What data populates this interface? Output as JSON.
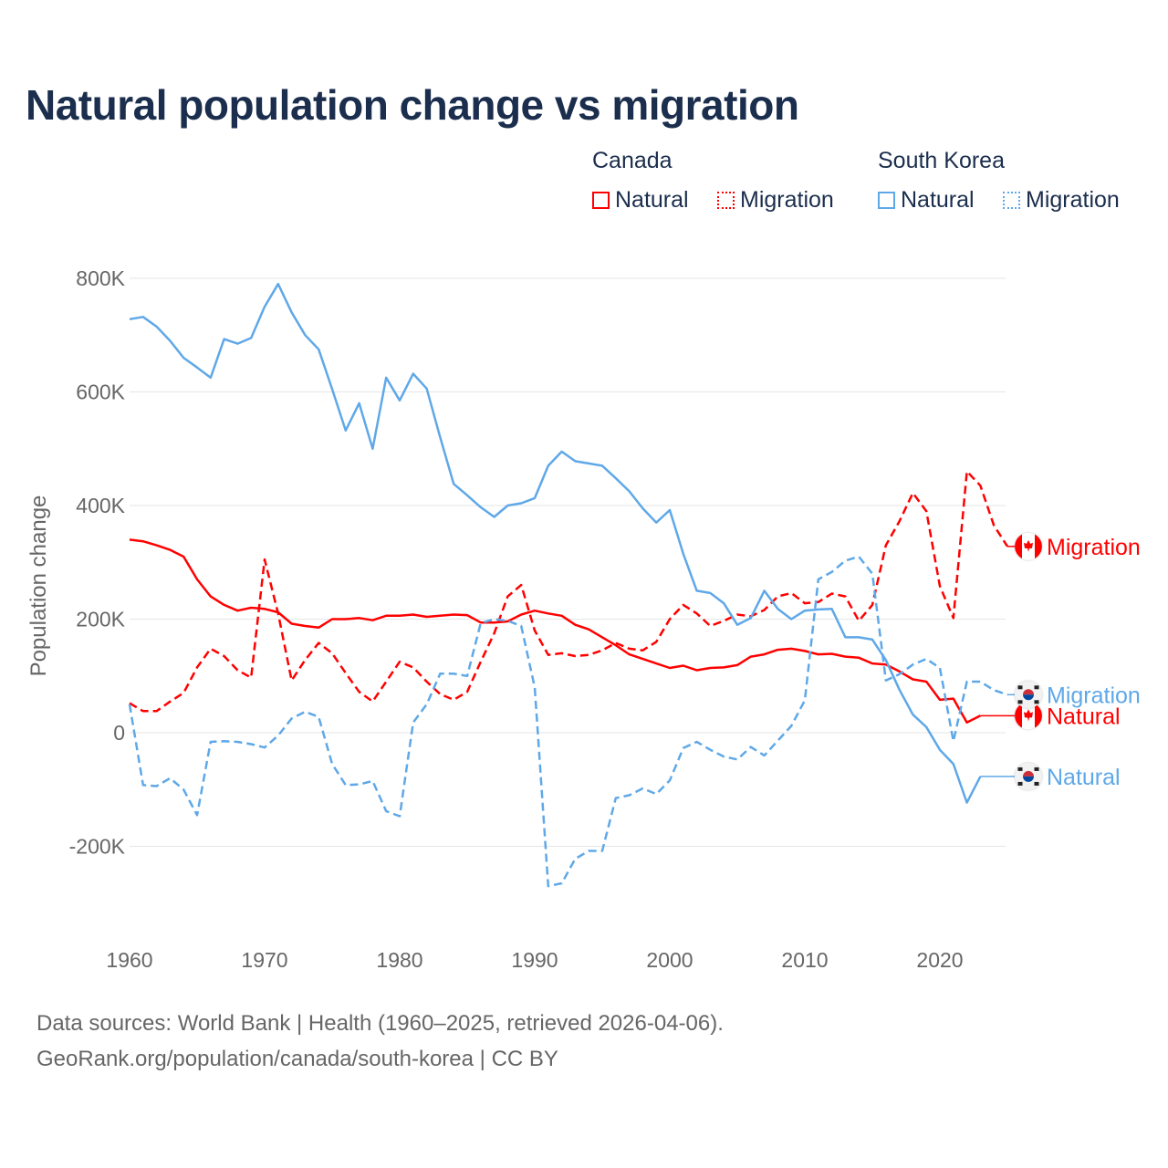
{
  "title": "Natural population change vs migration",
  "legend": {
    "groups": [
      {
        "name": "Canada",
        "items": [
          "Natural",
          "Migration"
        ]
      },
      {
        "name": "South Korea",
        "items": [
          "Natural",
          "Migration"
        ]
      }
    ]
  },
  "footer": {
    "line1": "Data sources: World Bank | Health (1960–2025, retrieved 2026-04-06).",
    "line2": "GeoRank.org/population/canada/south-korea | CC BY"
  },
  "colors": {
    "canada": "#ff0000",
    "korea": "#5fa8e8",
    "grid": "#e6e6e6",
    "tick": "#666666",
    "title": "#1b2e4d"
  },
  "chart_data": {
    "type": "line",
    "title": "Natural population change vs migration",
    "xlabel": "",
    "ylabel": "Population change",
    "xlim": [
      1960,
      2025
    ],
    "ylim": [
      -300000,
      800000
    ],
    "yticks": [
      {
        "v": 800,
        "label": "800K"
      },
      {
        "v": 600,
        "label": "600K"
      },
      {
        "v": 400,
        "label": "400K"
      },
      {
        "v": 200,
        "label": "200K"
      },
      {
        "v": 0,
        "label": "0"
      },
      {
        "v": -200,
        "label": "-200K"
      }
    ],
    "xticks": [
      1960,
      1970,
      1980,
      1990,
      2000,
      2010,
      2020
    ],
    "units": "thousands",
    "grid": true,
    "legend_position": "top-right",
    "series": [
      {
        "name": "Canada Natural",
        "label": "Natural",
        "country": "canada",
        "style": "solid",
        "start": 1960,
        "values": [
          340,
          337,
          330,
          322,
          310,
          270,
          240,
          225,
          215,
          220,
          218,
          212,
          192,
          188,
          185,
          200,
          200,
          202,
          198,
          206,
          206,
          208,
          204,
          206,
          208,
          207,
          194,
          194,
          196,
          208,
          215,
          210,
          206,
          190,
          182,
          168,
          154,
          138,
          130,
          122,
          114,
          118,
          110,
          114,
          115,
          119,
          134,
          138,
          146,
          148,
          144,
          138,
          139,
          134,
          132,
          122,
          120,
          108,
          94,
          90,
          58,
          60,
          18,
          30
        ]
      },
      {
        "name": "Canada Migration",
        "label": "Migration",
        "country": "canada",
        "style": "dashed",
        "start": 1960,
        "values": [
          52,
          38,
          38,
          55,
          70,
          115,
          148,
          135,
          110,
          97,
          305,
          210,
          92,
          128,
          158,
          140,
          105,
          72,
          55,
          90,
          125,
          115,
          90,
          68,
          58,
          72,
          125,
          175,
          240,
          260,
          180,
          137,
          140,
          135,
          137,
          145,
          158,
          148,
          145,
          160,
          200,
          225,
          210,
          188,
          197,
          208,
          205,
          216,
          240,
          246,
          228,
          230,
          245,
          240,
          197,
          225,
          330,
          372,
          422,
          390,
          258,
          202,
          460,
          435,
          365,
          328
        ]
      },
      {
        "name": "South Korea Natural",
        "label": "Natural",
        "country": "korea",
        "style": "solid",
        "start": 1960,
        "values": [
          728,
          732,
          715,
          690,
          660,
          643,
          625,
          693,
          685,
          695,
          750,
          790,
          740,
          700,
          675,
          605,
          532,
          580,
          500,
          625,
          585,
          632,
          606,
          520,
          438,
          418,
          397,
          380,
          400,
          404,
          413,
          470,
          495,
          478,
          474,
          470,
          448,
          425,
          395,
          370,
          392,
          315,
          250,
          246,
          228,
          190,
          202,
          250,
          218,
          200,
          215,
          217,
          218,
          168,
          168,
          164,
          128,
          76,
          32,
          10,
          -30,
          -55,
          -123,
          -77
        ]
      },
      {
        "name": "South Korea Migration",
        "label": "Migration",
        "country": "korea",
        "style": "dashed",
        "start": 1960,
        "values": [
          50,
          -92,
          -94,
          -80,
          -100,
          -145,
          -16,
          -15,
          -16,
          -20,
          -26,
          -5,
          25,
          37,
          28,
          -55,
          -92,
          -91,
          -85,
          -138,
          -147,
          18,
          50,
          104,
          104,
          100,
          193,
          200,
          197,
          188,
          80,
          -270,
          -265,
          -222,
          -208,
          -208,
          -115,
          -110,
          -98,
          -108,
          -84,
          -27,
          -16,
          -30,
          -42,
          -47,
          -25,
          -40,
          -14,
          12,
          57,
          270,
          283,
          303,
          310,
          280,
          92,
          103,
          120,
          130,
          114,
          -15,
          90,
          90,
          75,
          67
        ]
      }
    ]
  }
}
